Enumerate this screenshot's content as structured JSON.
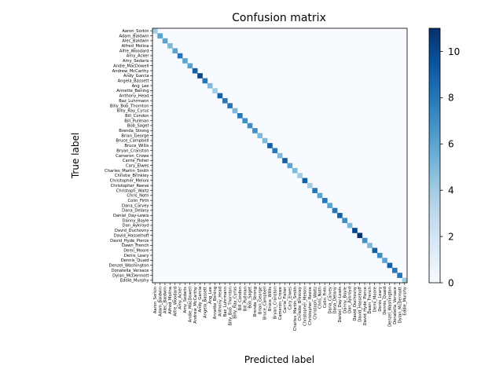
{
  "chart_data": {
    "type": "heatmap",
    "title": "Confusion matrix",
    "xlabel": "Predicted label",
    "ylabel": "True label",
    "labels": [
      "Aaron_Sorkin",
      "Adam_Baldwin",
      "Alec_Baldwin",
      "Alfred_Molina",
      "Alfre_Woodard",
      "Amy_Acker",
      "Amy_Sedaris",
      "Andie_MacDowell",
      "Andrew_McCarthy",
      "Andy_Garcia",
      "Angela_Bassett",
      "Ang_Lee",
      "Annette_Bening",
      "Anthony_Head",
      "Baz_Luhrmann",
      "Billy_Bob_Thornton",
      "Billy_Ray_Cyrus",
      "Bill_Condon",
      "Bill_Pullman",
      "Bob_Saget",
      "Brenda_Strong",
      "Brian_George",
      "Bruce_Campbell",
      "Bruce_Willis",
      "Bryan_Cranston",
      "Cameron_Crowe",
      "Carrie_Fisher",
      "Cary_Elwes",
      "Charles_Martin_Smith",
      "Christie_Brinkley",
      "Christopher_Meloni",
      "Christopher_Reeve",
      "Christoph_Waltz",
      "Chris_Noth",
      "Colin_Firth",
      "Dana_Carvey",
      "Dana_Delany",
      "Daniel_Day-Lewis",
      "Danny_Boyle",
      "Dan_Aykroyd",
      "David_Duchovny",
      "David_Hasselhoff",
      "David_Hyde_Pierce",
      "Dawn_French",
      "Demi_Moore",
      "Denis_Leary",
      "Dennis_Quaid",
      "Denzel_Washington",
      "Donatella_Versace",
      "Dylan_McDermott",
      "Eddie_Murphy"
    ],
    "diagonal_values": [
      4,
      6,
      6,
      5,
      6,
      8,
      6,
      6,
      9,
      10,
      8,
      5,
      4,
      9,
      8,
      8,
      5,
      8,
      7,
      7,
      7,
      5,
      5,
      9,
      8,
      5,
      9,
      6,
      5,
      4,
      9,
      4,
      8,
      6,
      8,
      6,
      8,
      9,
      7,
      5,
      10,
      11,
      7,
      5,
      9,
      7,
      6,
      9,
      8,
      8,
      4
    ],
    "off_diagonal_value": 0,
    "colormap": "Blues",
    "colorbar": {
      "min": 0,
      "max": 11,
      "ticks": [
        0,
        2,
        4,
        6,
        8,
        10
      ]
    }
  }
}
